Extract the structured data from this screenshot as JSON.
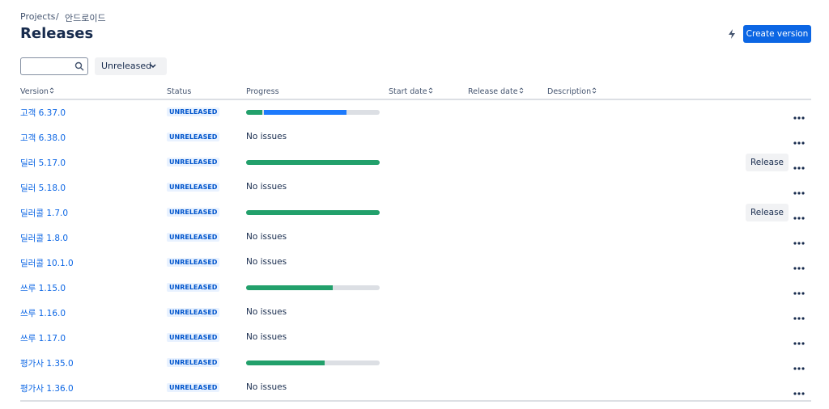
{
  "breadcrumb": {
    "items": [
      "Projects",
      "안드로이드"
    ],
    "separator": "/"
  },
  "header": {
    "title": "Releases",
    "create_button": "Create version"
  },
  "filters": {
    "status": "Unreleased"
  },
  "table": {
    "columns": [
      "Version",
      "Status",
      "Progress",
      "Start date",
      "Release date",
      "Description"
    ],
    "sortable": [
      true,
      false,
      false,
      true,
      true,
      true
    ],
    "rows": [
      {
        "version": "고객 6.37.0",
        "status": "UNRELEASED",
        "progress": {
          "done": 12,
          "in_progress": 62
        }
      },
      {
        "version": "고객 6.38.0",
        "status": "UNRELEASED",
        "progress_text": "No issues"
      },
      {
        "version": "딜러 5.17.0",
        "status": "UNRELEASED",
        "progress": {
          "done": 100,
          "in_progress": 0
        },
        "action": "Release"
      },
      {
        "version": "딜러 5.18.0",
        "status": "UNRELEASED",
        "progress_text": "No issues"
      },
      {
        "version": "딜러콜 1.7.0",
        "status": "UNRELEASED",
        "progress": {
          "done": 100,
          "in_progress": 0
        },
        "action": "Release"
      },
      {
        "version": "딜러콜 1.8.0",
        "status": "UNRELEASED",
        "progress_text": "No issues"
      },
      {
        "version": "딜러콜 10.1.0",
        "status": "UNRELEASED",
        "progress_text": "No issues"
      },
      {
        "version": "쓰루 1.15.0",
        "status": "UNRELEASED",
        "progress": {
          "done": 65,
          "in_progress": 0
        }
      },
      {
        "version": "쓰루 1.16.0",
        "status": "UNRELEASED",
        "progress_text": "No issues"
      },
      {
        "version": "쓰루 1.17.0",
        "status": "UNRELEASED",
        "progress_text": "No issues"
      },
      {
        "version": "평가사 1.35.0",
        "status": "UNRELEASED",
        "progress": {
          "done": 59,
          "in_progress": 0
        }
      },
      {
        "version": "평가사 1.36.0",
        "status": "UNRELEASED",
        "progress_text": "No issues"
      }
    ]
  }
}
